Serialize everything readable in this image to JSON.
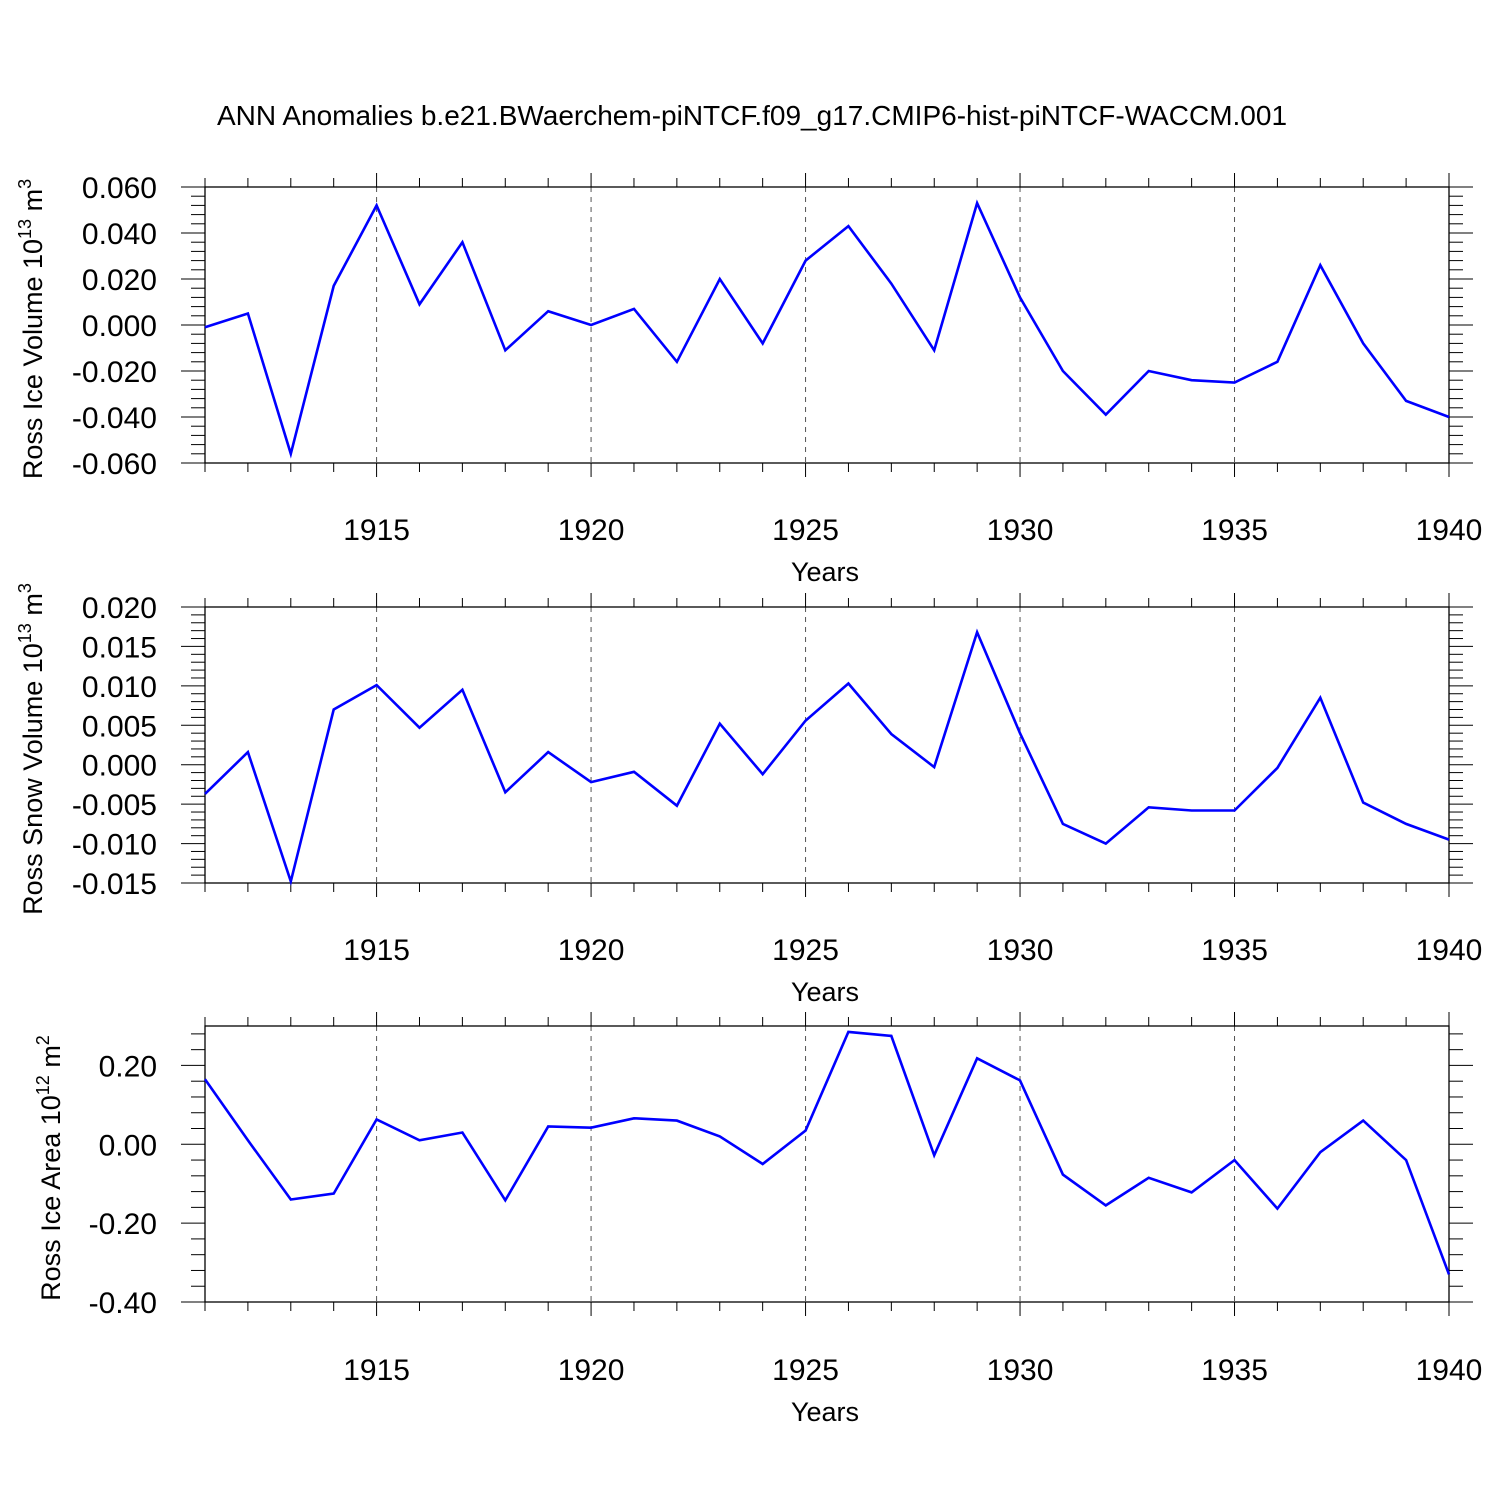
{
  "title": "ANN Anomalies b.e21.BWaerchem-piNTCF.f09_g17.CMIP6-hist-piNTCF-WACCM.001",
  "colors": {
    "line": "#0000ff",
    "axis": "#000000",
    "grid": "#555555"
  },
  "chart_data": [
    {
      "type": "line",
      "title": "ANN Anomalies b.e21.BWaerchem-piNTCF.f09_g17.CMIP6-hist-piNTCF-WACCM.001",
      "xlabel": "Years",
      "ylabel": {
        "text": "Ross Ice Volume 10",
        "sup": "13",
        "unit": " m",
        "unit_sup": "3"
      },
      "xlim": [
        1911,
        1940
      ],
      "ylim": [
        -0.06,
        0.06
      ],
      "x_ticks": [
        "1915",
        "1920",
        "1925",
        "1930",
        "1935",
        "1940"
      ],
      "y_ticks": [
        "0.060",
        "0.040",
        "0.020",
        "0.000",
        "-0.020",
        "-0.040",
        "-0.060"
      ],
      "grid": "dashed vertical lines at major x ticks",
      "x": [
        1911,
        1912,
        1913,
        1914,
        1915,
        1916,
        1917,
        1918,
        1919,
        1920,
        1921,
        1922,
        1923,
        1924,
        1925,
        1926,
        1927,
        1928,
        1929,
        1930,
        1931,
        1932,
        1933,
        1934,
        1935,
        1936,
        1937,
        1938,
        1939,
        1940
      ],
      "series": [
        {
          "name": "Ross Ice Volume",
          "values": [
            -0.001,
            0.005,
            -0.056,
            0.017,
            0.052,
            0.009,
            0.036,
            -0.011,
            0.006,
            0.0,
            0.007,
            -0.016,
            0.02,
            -0.008,
            0.028,
            0.043,
            0.018,
            -0.011,
            0.053,
            0.012,
            -0.02,
            -0.039,
            -0.02,
            -0.024,
            -0.025,
            -0.016,
            0.026,
            -0.008,
            -0.033,
            -0.04
          ]
        }
      ]
    },
    {
      "type": "line",
      "xlabel": "Years",
      "ylabel": {
        "text": "Ross Snow Volume 10",
        "sup": "13",
        "unit": " m",
        "unit_sup": "3"
      },
      "xlim": [
        1911,
        1940
      ],
      "ylim": [
        -0.015,
        0.02
      ],
      "x_ticks": [
        "1915",
        "1920",
        "1925",
        "1930",
        "1935",
        "1940"
      ],
      "y_ticks": [
        "0.020",
        "0.015",
        "0.010",
        "0.005",
        "0.000",
        "-0.005",
        "-0.010",
        "-0.015"
      ],
      "grid": "dashed vertical lines at major x ticks",
      "x": [
        1911,
        1912,
        1913,
        1914,
        1915,
        1916,
        1917,
        1918,
        1919,
        1920,
        1921,
        1922,
        1923,
        1924,
        1925,
        1926,
        1927,
        1928,
        1929,
        1930,
        1931,
        1932,
        1933,
        1934,
        1935,
        1936,
        1937,
        1938,
        1939,
        1940
      ],
      "series": [
        {
          "name": "Ross Snow Volume",
          "values": [
            -0.0037,
            0.0016,
            -0.0148,
            0.007,
            0.0101,
            0.0047,
            0.0095,
            -0.0035,
            0.0016,
            -0.0022,
            -0.0009,
            -0.0052,
            0.0052,
            -0.0012,
            0.0056,
            0.0103,
            0.0039,
            -0.0003,
            0.0168,
            0.004,
            -0.0075,
            -0.01,
            -0.0054,
            -0.0058,
            -0.0058,
            -0.0004,
            0.0085,
            -0.0048,
            -0.0075,
            -0.0095
          ]
        }
      ]
    },
    {
      "type": "line",
      "xlabel": "Years",
      "ylabel": {
        "text": "Ross Ice Area 10",
        "sup": "12",
        "unit": " m",
        "unit_sup": "2"
      },
      "xlim": [
        1911,
        1940
      ],
      "ylim": [
        -0.4,
        0.3
      ],
      "x_ticks": [
        "1915",
        "1920",
        "1925",
        "1930",
        "1935",
        "1940"
      ],
      "y_ticks": [
        "0.20",
        "0.00",
        "-0.20",
        "-0.40"
      ],
      "grid": "dashed vertical lines at major x ticks",
      "x": [
        1911,
        1912,
        1913,
        1914,
        1915,
        1916,
        1917,
        1918,
        1919,
        1920,
        1921,
        1922,
        1923,
        1924,
        1925,
        1926,
        1927,
        1928,
        1929,
        1930,
        1931,
        1932,
        1933,
        1934,
        1935,
        1936,
        1937,
        1938,
        1939,
        1940
      ],
      "series": [
        {
          "name": "Ross Ice Area",
          "values": [
            0.165,
            0.01,
            -0.14,
            -0.125,
            0.063,
            0.01,
            0.03,
            -0.142,
            0.045,
            0.042,
            0.066,
            0.06,
            0.02,
            -0.05,
            0.035,
            0.285,
            0.275,
            -0.028,
            0.218,
            0.162,
            -0.077,
            -0.155,
            -0.085,
            -0.122,
            -0.04,
            -0.163,
            -0.02,
            0.06,
            -0.04,
            -0.33
          ]
        }
      ]
    }
  ]
}
